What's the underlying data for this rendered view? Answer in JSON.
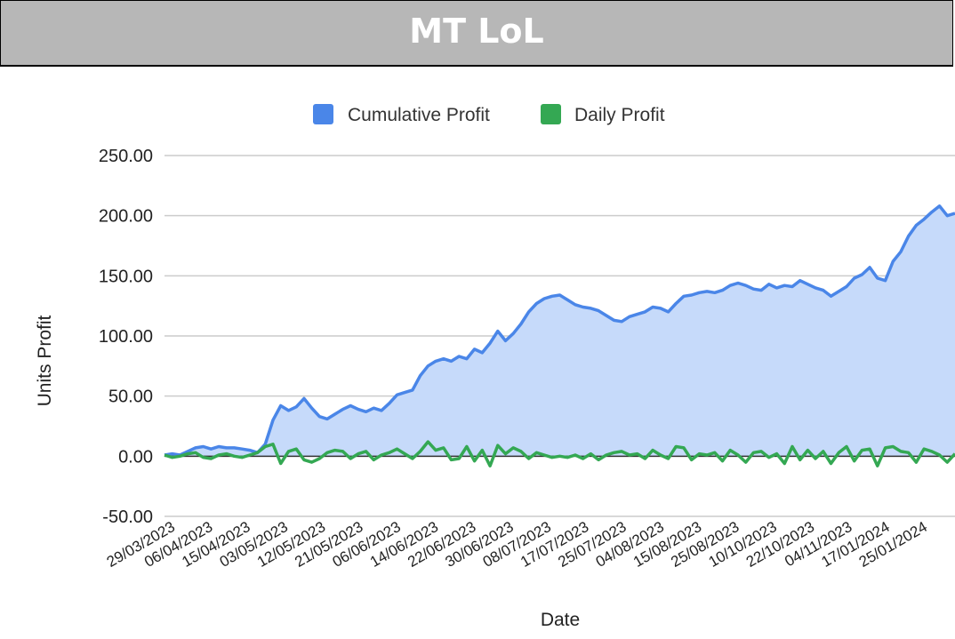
{
  "title": "MT LoL",
  "colors": {
    "header_bg": "#b7b7b7",
    "cumulative": "#4a86e8",
    "cumulative_fill": "#c6dafa",
    "daily": "#34a853",
    "grid": "#cccccc",
    "zero": "#333333"
  },
  "chart_data": {
    "type": "area",
    "title": "MT LoL",
    "xlabel": "Date",
    "ylabel": "Units Profit",
    "ylim": [
      -50,
      250
    ],
    "yticks": [
      "250.00",
      "200.00",
      "150.00",
      "100.00",
      "50.00",
      "0.00",
      "-50.00"
    ],
    "ytick_values": [
      250,
      200,
      150,
      100,
      50,
      0,
      -50
    ],
    "xtick_labels": [
      "29/03/2023",
      "06/04/2023",
      "15/04/2023",
      "03/05/2023",
      "12/05/2023",
      "21/05/2023",
      "06/06/2023",
      "14/06/2023",
      "22/06/2023",
      "30/06/2023",
      "08/07/2023",
      "17/07/2023",
      "25/07/2023",
      "04/08/2023",
      "15/08/2023",
      "25/08/2023",
      "10/10/2023",
      "22/10/2023",
      "04/11/2023",
      "17/01/2024",
      "25/01/2024"
    ],
    "grid": true,
    "legend": "top",
    "series": [
      {
        "name": "Cumulative Profit",
        "color": "#4a86e8",
        "style": "filled-area",
        "values": [
          1,
          2,
          1,
          4,
          7,
          8,
          6,
          8,
          7,
          7,
          6,
          5,
          3,
          10,
          30,
          42,
          38,
          41,
          48,
          40,
          33,
          31,
          35,
          39,
          42,
          39,
          37,
          40,
          38,
          44,
          51,
          53,
          55,
          67,
          75,
          79,
          81,
          79,
          83,
          81,
          89,
          86,
          94,
          104,
          96,
          102,
          110,
          120,
          127,
          131,
          133,
          134,
          130,
          126,
          124,
          123,
          121,
          117,
          113,
          112,
          116,
          118,
          120,
          124,
          123,
          120,
          127,
          133,
          134,
          136,
          137,
          136,
          138,
          142,
          144,
          142,
          139,
          138,
          143,
          140,
          142,
          141,
          146,
          143,
          140,
          138,
          133,
          137,
          141,
          148,
          151,
          157,
          148,
          146,
          162,
          170,
          183,
          192,
          197,
          203,
          208,
          200,
          202
        ]
      },
      {
        "name": "Daily Profit",
        "color": "#34a853",
        "style": "line",
        "values": [
          1,
          -1,
          0,
          2,
          3,
          -1,
          -2,
          1,
          2,
          0,
          -1,
          1,
          3,
          8,
          10,
          -6,
          4,
          6,
          -3,
          -5,
          -2,
          3,
          5,
          4,
          -2,
          2,
          4,
          -3,
          1,
          3,
          6,
          2,
          -2,
          4,
          12,
          5,
          7,
          -3,
          -2,
          8,
          -4,
          5,
          -8,
          9,
          2,
          7,
          4,
          -2,
          3,
          1,
          -1,
          0,
          -1,
          1,
          -2,
          2,
          -3,
          1,
          3,
          4,
          1,
          2,
          -2,
          5,
          1,
          -2,
          8,
          7,
          -3,
          2,
          1,
          3,
          -4,
          5,
          1,
          -5,
          3,
          4,
          -1,
          2,
          -6,
          8,
          -3,
          5,
          -2,
          4,
          -6,
          3,
          8,
          -4,
          5,
          6,
          -8,
          7,
          8,
          4,
          3,
          -5,
          6,
          4,
          1,
          -5,
          2
        ]
      }
    ]
  }
}
